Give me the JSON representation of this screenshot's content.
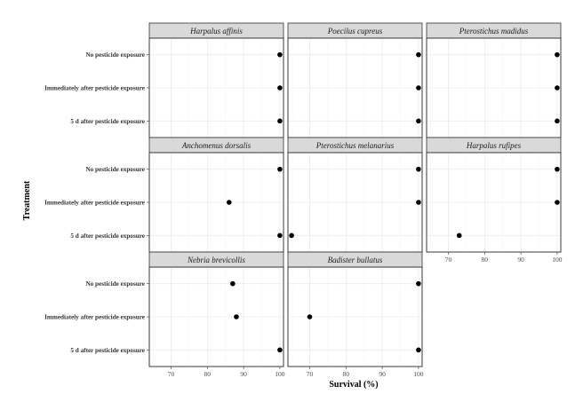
{
  "chart_data": {
    "type": "scatter",
    "xlabel": "Survival (%)",
    "ylabel": "Treatment",
    "xlim": [
      64,
      101
    ],
    "x_ticks": [
      70,
      80,
      90,
      100
    ],
    "categories": [
      "No pesticide exposure",
      "Immediately after pesticide exposure",
      "5 d after pesticide exposure"
    ],
    "grid": true,
    "facets": [
      {
        "species": "Harpalus affinis",
        "values": [
          100,
          100,
          100
        ]
      },
      {
        "species": "Poecilus cupreus",
        "values": [
          100,
          100,
          100
        ]
      },
      {
        "species": "Pterostichus madidus",
        "values": [
          100,
          100,
          100
        ]
      },
      {
        "species": "Anchomenus dorsalis",
        "values": [
          100,
          86,
          100
        ]
      },
      {
        "species": "Pterostichus melanarius",
        "values": [
          100,
          100,
          65
        ]
      },
      {
        "species": "Harpalus rufipes",
        "values": [
          100,
          100,
          73
        ]
      },
      {
        "species": "Nebria brevicollis",
        "values": [
          87,
          88,
          100
        ]
      },
      {
        "species": "Badister bullatus",
        "values": [
          100,
          70,
          100
        ]
      }
    ]
  }
}
